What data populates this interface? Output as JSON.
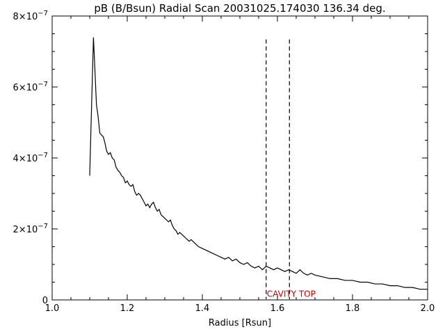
{
  "chart_data": {
    "type": "line",
    "title": "pB (B/Bsun) Radial Scan 20031025.174030 136.34 deg.",
    "xlabel": "Radius [Rsun]",
    "ylabel": "",
    "xlim": [
      1.0,
      2.0
    ],
    "ylim": [
      0,
      8e-07
    ],
    "x_ticks": [
      1.0,
      1.2,
      1.4,
      1.6,
      1.8,
      2.0
    ],
    "x_tick_labels": [
      "1.0",
      "1.2",
      "1.4",
      "1.6",
      "1.8",
      "2.0"
    ],
    "y_ticks": [
      0,
      2e-07,
      4e-07,
      6e-07,
      8e-07
    ],
    "y_tick_labels": [
      {
        "base": "0",
        "exp": ""
      },
      {
        "base": "2×10",
        "exp": "−7"
      },
      {
        "base": "4×10",
        "exp": "−7"
      },
      {
        "base": "6×10",
        "exp": "−7"
      },
      {
        "base": "8×10",
        "exp": "−7"
      }
    ],
    "grid": false,
    "series": [
      {
        "color": "#000000",
        "x": [
          1.1,
          1.11,
          1.113,
          1.118,
          1.122,
          1.127,
          1.131,
          1.136,
          1.14,
          1.145,
          1.15,
          1.155,
          1.16,
          1.165,
          1.17,
          1.175,
          1.18,
          1.185,
          1.19,
          1.195,
          1.2,
          1.205,
          1.21,
          1.215,
          1.22,
          1.225,
          1.23,
          1.235,
          1.24,
          1.245,
          1.25,
          1.255,
          1.26,
          1.265,
          1.27,
          1.275,
          1.28,
          1.285,
          1.29,
          1.295,
          1.3,
          1.305,
          1.31,
          1.315,
          1.32,
          1.325,
          1.33,
          1.335,
          1.34,
          1.345,
          1.35,
          1.355,
          1.36,
          1.365,
          1.37,
          1.38,
          1.39,
          1.4,
          1.41,
          1.42,
          1.43,
          1.44,
          1.45,
          1.46,
          1.47,
          1.48,
          1.49,
          1.5,
          1.51,
          1.52,
          1.53,
          1.54,
          1.55,
          1.56,
          1.57,
          1.58,
          1.59,
          1.6,
          1.61,
          1.62,
          1.63,
          1.64,
          1.65,
          1.66,
          1.67,
          1.68,
          1.69,
          1.7,
          1.72,
          1.74,
          1.76,
          1.78,
          1.8,
          1.82,
          1.84,
          1.86,
          1.88,
          1.9,
          1.92,
          1.94,
          1.96,
          1.98,
          2.0
        ],
        "y": [
          3.5e-07,
          7.4e-07,
          6.7e-07,
          5.5e-07,
          5.2e-07,
          4.7e-07,
          4.65e-07,
          4.6e-07,
          4.45e-07,
          4.2e-07,
          4.1e-07,
          4.15e-07,
          4e-07,
          3.95e-07,
          3.75e-07,
          3.65e-07,
          3.6e-07,
          3.5e-07,
          3.45e-07,
          3.3e-07,
          3.35e-07,
          3.25e-07,
          3.2e-07,
          3.25e-07,
          3.05e-07,
          2.95e-07,
          3e-07,
          2.95e-07,
          2.85e-07,
          2.75e-07,
          2.65e-07,
          2.7e-07,
          2.6e-07,
          2.7e-07,
          2.75e-07,
          2.6e-07,
          2.5e-07,
          2.55e-07,
          2.4e-07,
          2.35e-07,
          2.3e-07,
          2.25e-07,
          2.2e-07,
          2.25e-07,
          2.1e-07,
          2e-07,
          1.95e-07,
          1.85e-07,
          1.9e-07,
          1.85e-07,
          1.8e-07,
          1.75e-07,
          1.7e-07,
          1.65e-07,
          1.7e-07,
          1.6e-07,
          1.5e-07,
          1.45e-07,
          1.4e-07,
          1.35e-07,
          1.3e-07,
          1.25e-07,
          1.2e-07,
          1.15e-07,
          1.2e-07,
          1.1e-07,
          1.15e-07,
          1.05e-07,
          1e-07,
          1.05e-07,
          9.5e-08,
          9e-08,
          9.5e-08,
          8.5e-08,
          9.5e-08,
          9e-08,
          8.5e-08,
          9e-08,
          8.5e-08,
          8e-08,
          8.5e-08,
          8e-08,
          7.5e-08,
          8.5e-08,
          7.5e-08,
          7e-08,
          7.5e-08,
          7e-08,
          6.5e-08,
          6e-08,
          6e-08,
          5.5e-08,
          5.5e-08,
          5e-08,
          5e-08,
          4.5e-08,
          4.5e-08,
          4e-08,
          4e-08,
          3.5e-08,
          3.5e-08,
          3e-08,
          3e-08
        ]
      }
    ],
    "vlines": [
      {
        "x": 1.57,
        "y_top": 7.4e-07,
        "style": "dashed",
        "color": "#000000"
      },
      {
        "x": 1.632,
        "y_top": 7.4e-07,
        "style": "dashed",
        "color": "#000000"
      }
    ],
    "annotations": [
      {
        "text": "CAVITY TOP",
        "x": 1.57,
        "y": 4e-08,
        "color": "#cc0000"
      }
    ]
  }
}
